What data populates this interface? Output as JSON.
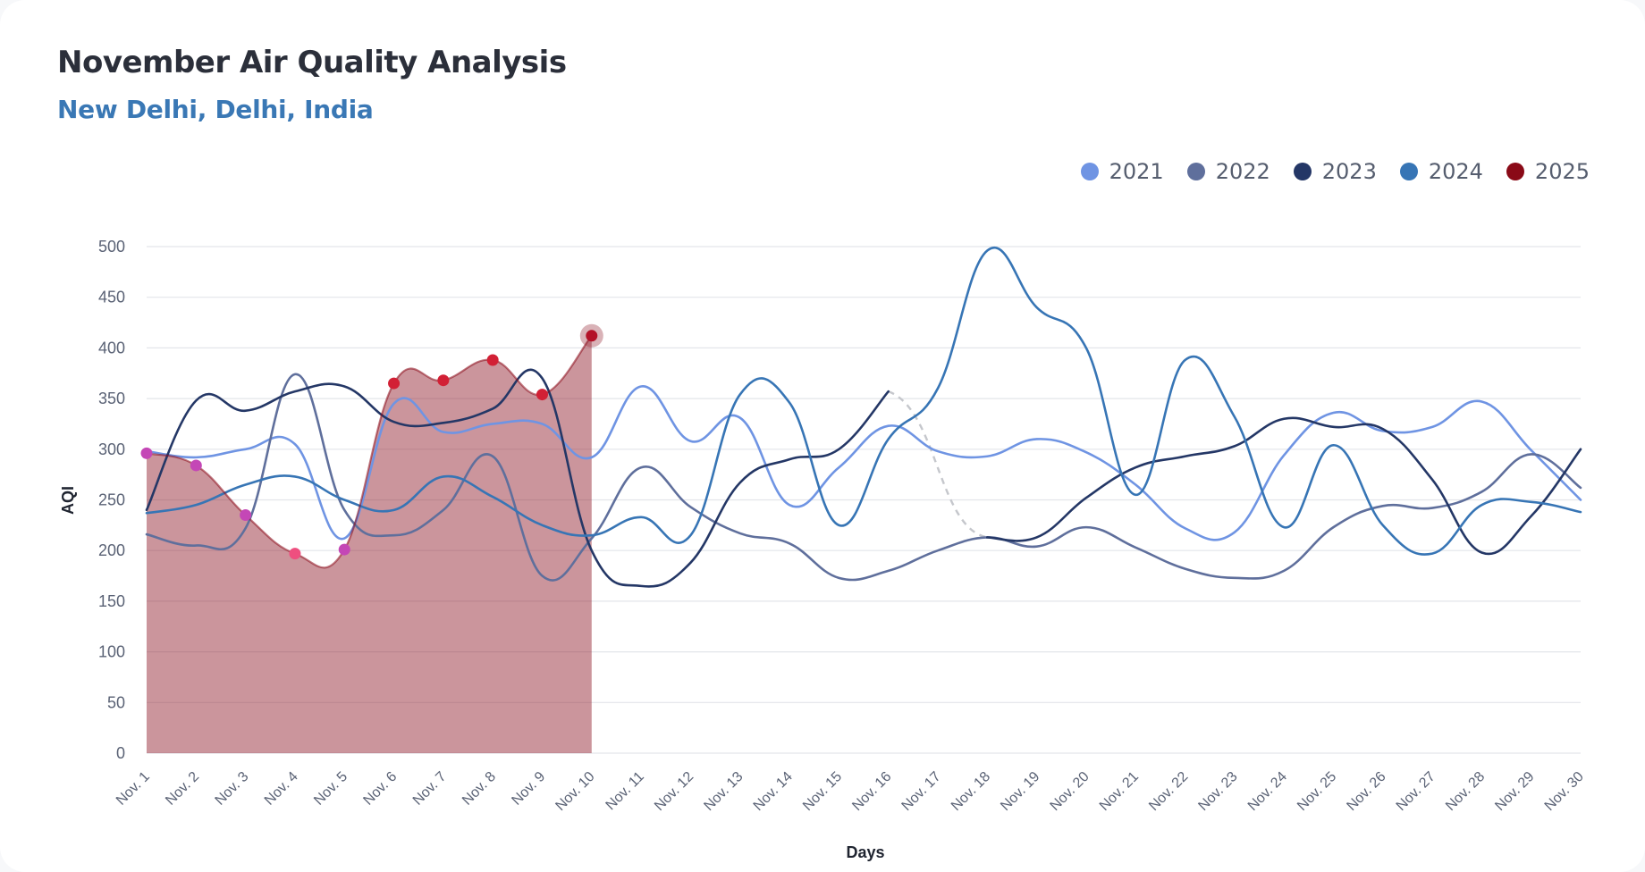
{
  "header": {
    "title": "November Air Quality Analysis",
    "subtitle": "New Delhi, Delhi, India"
  },
  "chart_data": {
    "type": "line",
    "title": "November Air Quality Analysis",
    "subtitle": "New Delhi, Delhi, India",
    "xlabel": "Days",
    "ylabel": "AQI",
    "ylim": [
      0,
      500
    ],
    "yticks": [
      0,
      50,
      100,
      150,
      200,
      250,
      300,
      350,
      400,
      450,
      500
    ],
    "grid": true,
    "legend_position": "top-right",
    "categories": [
      "Nov. 1",
      "Nov. 2",
      "Nov. 3",
      "Nov. 4",
      "Nov. 5",
      "Nov. 6",
      "Nov. 7",
      "Nov. 8",
      "Nov. 9",
      "Nov. 10",
      "Nov. 11",
      "Nov. 12",
      "Nov. 13",
      "Nov. 14",
      "Nov. 15",
      "Nov. 16",
      "Nov. 17",
      "Nov. 18",
      "Nov. 19",
      "Nov. 20",
      "Nov. 21",
      "Nov. 22",
      "Nov. 23",
      "Nov. 24",
      "Nov. 25",
      "Nov. 26",
      "Nov. 27",
      "Nov. 28",
      "Nov. 29",
      "Nov. 30"
    ],
    "series": [
      {
        "name": "2021",
        "color": "#6f94e3",
        "values": [
          298,
          292,
          300,
          305,
          212,
          345,
          317,
          325,
          325,
          292,
          362,
          308,
          331,
          245,
          282,
          323,
          298,
          293,
          310,
          297,
          265,
          222,
          218,
          294,
          336,
          318,
          322,
          347,
          299,
          250
        ]
      },
      {
        "name": "2022",
        "color": "#5f6f9c",
        "values": [
          216,
          205,
          222,
          374,
          240,
          215,
          240,
          293,
          175,
          212,
          282,
          243,
          217,
          207,
          173,
          180,
          200,
          213,
          204,
          223,
          203,
          182,
          173,
          180,
          223,
          244,
          242,
          258,
          295,
          262
        ]
      },
      {
        "name": "2023",
        "color": "#243766",
        "values": [
          240,
          348,
          338,
          357,
          362,
          327,
          326,
          340,
          370,
          200,
          165,
          188,
          267,
          290,
          300,
          357,
          null,
          213,
          213,
          252,
          282,
          293,
          303,
          330,
          322,
          320,
          270,
          198,
          234,
          300
        ]
      },
      {
        "name": "2024",
        "color": "#3775b5",
        "values": [
          237,
          245,
          265,
          273,
          250,
          240,
          273,
          253,
          225,
          215,
          233,
          215,
          354,
          346,
          225,
          310,
          360,
          496,
          440,
          400,
          255,
          388,
          332,
          223,
          304,
          225,
          197,
          245,
          248,
          238
        ]
      },
      {
        "name": "2025",
        "color": "#8a0a17",
        "values": [
          296,
          284,
          235,
          197,
          201,
          365,
          368,
          388,
          354,
          412,
          null,
          null,
          null,
          null,
          null,
          null,
          null,
          null,
          null,
          null,
          null,
          null,
          null,
          null,
          null,
          null,
          null,
          null,
          null,
          null
        ],
        "point_colors": [
          "#c447b6",
          "#c447b6",
          "#c447b6",
          "#ee4f7f",
          "#c447b6",
          "#d22035",
          "#d22035",
          "#d22035",
          "#d22035",
          "#b31228"
        ]
      }
    ],
    "connectors": [
      {
        "series": "2023",
        "from": "Nov. 16",
        "to": "Nov. 18",
        "style": "dashed",
        "color": "#c5c7cc"
      }
    ]
  }
}
